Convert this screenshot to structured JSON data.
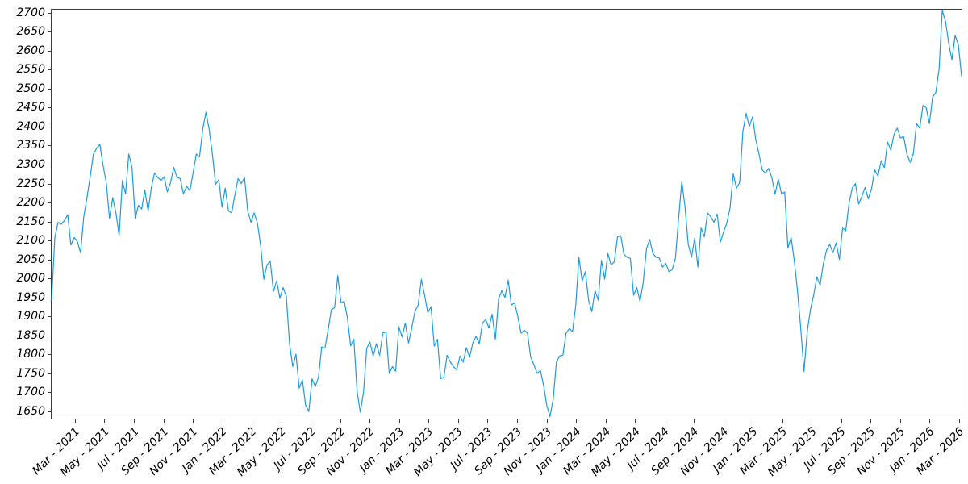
{
  "chart_data": {
    "type": "line",
    "title": "",
    "xlabel": "",
    "ylabel": "",
    "grid": false,
    "legend": null,
    "line_color": "#1e9bdf",
    "spine_color": "#3c3c3c",
    "ylim": [
      1633,
      2710
    ],
    "y_ticks": [
      1650,
      1700,
      1750,
      1800,
      1850,
      1900,
      1950,
      2000,
      2050,
      2100,
      2150,
      2200,
      2250,
      2300,
      2350,
      2400,
      2450,
      2500,
      2550,
      2600,
      2650,
      2700
    ],
    "x_tick_labels": [
      "Mar - 2021",
      "May - 2021",
      "Jul - 2021",
      "Sep - 2021",
      "Nov - 2021",
      "Jan - 2022",
      "Mar - 2022",
      "May - 2022",
      "Jul - 2022",
      "Sep - 2022",
      "Nov - 2022",
      "Jan - 2023",
      "Mar - 2023",
      "May - 2023",
      "Jul - 2023",
      "Sep - 2023",
      "Nov - 2023",
      "Jan - 2024",
      "Mar - 2024",
      "May - 2024",
      "Jul - 2024",
      "Sep - 2024",
      "Nov - 2024",
      "Jan - 2025",
      "Mar - 2025",
      "May - 2025",
      "Jul - 2025",
      "Sep - 2025",
      "Nov - 2025",
      "Jan - 2026",
      "Mar - 2026"
    ],
    "x_tick_start_frac": 0.02655,
    "x_tick_step_frac": 0.032389,
    "x_range_note": "data spans ~mid-Jan 2021 to ~Mar 2026, sampled ~weekly",
    "series": [
      {
        "name": "value",
        "values": [
          1945,
          2110,
          2150,
          2145,
          2155,
          2170,
          2090,
          2110,
          2100,
          2070,
          2165,
          2215,
          2270,
          2330,
          2345,
          2355,
          2300,
          2255,
          2160,
          2215,
          2175,
          2115,
          2260,
          2225,
          2330,
          2295,
          2160,
          2195,
          2185,
          2235,
          2180,
          2240,
          2280,
          2268,
          2260,
          2270,
          2230,
          2255,
          2295,
          2268,
          2265,
          2225,
          2245,
          2233,
          2280,
          2330,
          2322,
          2395,
          2440,
          2395,
          2330,
          2250,
          2262,
          2190,
          2240,
          2180,
          2175,
          2222,
          2265,
          2252,
          2268,
          2180,
          2150,
          2175,
          2148,
          2090,
          2000,
          2038,
          2048,
          1968,
          1996,
          1950,
          1978,
          1955,
          1830,
          1770,
          1803,
          1713,
          1735,
          1668,
          1652,
          1738,
          1718,
          1742,
          1822,
          1818,
          1868,
          1920,
          1925,
          2010,
          1938,
          1942,
          1898,
          1825,
          1842,
          1705,
          1650,
          1702,
          1818,
          1835,
          1798,
          1830,
          1800,
          1858,
          1862,
          1752,
          1770,
          1758,
          1875,
          1848,
          1885,
          1832,
          1872,
          1915,
          1932,
          2000,
          1958,
          1912,
          1928,
          1824,
          1842,
          1738,
          1742,
          1800,
          1782,
          1770,
          1762,
          1798,
          1782,
          1820,
          1795,
          1832,
          1850,
          1830,
          1885,
          1894,
          1872,
          1908,
          1842,
          1948,
          1970,
          1952,
          1998,
          1932,
          1938,
          1902,
          1858,
          1866,
          1858,
          1795,
          1775,
          1752,
          1760,
          1722,
          1668,
          1638,
          1685,
          1782,
          1798,
          1800,
          1858,
          1870,
          1862,
          1930,
          2058,
          1996,
          2020,
          1945,
          1915,
          1970,
          1945,
          2050,
          2000,
          2068,
          2038,
          2046,
          2112,
          2115,
          2066,
          2058,
          2055,
          1958,
          1978,
          1942,
          1992,
          2080,
          2105,
          2068,
          2058,
          2056,
          2032,
          2042,
          2020,
          2026,
          2055,
          2160,
          2258,
          2190,
          2092,
          2058,
          2108,
          2032,
          2135,
          2112,
          2175,
          2165,
          2150,
          2172,
          2098,
          2125,
          2148,
          2188,
          2278,
          2240,
          2255,
          2390,
          2437,
          2402,
          2428,
          2368,
          2330,
          2288,
          2280,
          2292,
          2268,
          2224,
          2264,
          2225,
          2230,
          2082,
          2110,
          2048,
          1968,
          1870,
          1757,
          1862,
          1920,
          1958,
          2006,
          1985,
          2040,
          2076,
          2092,
          2070,
          2096,
          2052,
          2135,
          2128,
          2200,
          2240,
          2252,
          2198,
          2218,
          2242,
          2212,
          2238,
          2288,
          2272,
          2312,
          2294,
          2362,
          2340,
          2382,
          2398,
          2372,
          2376,
          2330,
          2308,
          2330,
          2410,
          2398,
          2458,
          2452,
          2410,
          2480,
          2492,
          2552,
          2708,
          2680,
          2622,
          2578,
          2642,
          2618,
          2535
        ]
      }
    ]
  }
}
